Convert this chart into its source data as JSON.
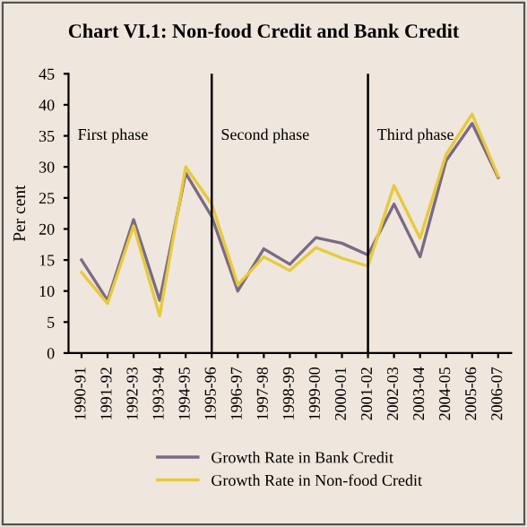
{
  "chart_data": {
    "type": "line",
    "title": "Chart VI.1: Non-food Credit and Bank Credit",
    "ylabel": "Per cent",
    "categories": [
      "1990-91",
      "1991-92",
      "1992-93",
      "1993-94",
      "1994-95",
      "1995-96",
      "1996-97",
      "1997-98",
      "1998-99",
      "1999-00",
      "2000-01",
      "2001-02",
      "2002-03",
      "2003-04",
      "2004-05",
      "2005-06",
      "2006-07"
    ],
    "series": [
      {
        "name": "Growth Rate in Bank Credit",
        "color": "#7b6a85",
        "values": [
          15,
          8.5,
          21.5,
          8.5,
          29,
          22,
          10,
          16.8,
          14.3,
          18.6,
          17.7,
          15.8,
          24,
          15.5,
          31,
          37,
          28.3
        ]
      },
      {
        "name": "Growth Rate in Non-food Credit",
        "color": "#e8c93a",
        "values": [
          13,
          8,
          20.5,
          6,
          30,
          24,
          11,
          15.5,
          13.3,
          17,
          15.3,
          14,
          27,
          18.5,
          32,
          38.5,
          28.5
        ]
      }
    ],
    "ylim": [
      0,
      45
    ],
    "yticks": [
      0,
      5,
      10,
      15,
      20,
      25,
      30,
      35,
      40,
      45
    ],
    "ref_lines": [
      {
        "axis": "x",
        "value": "1995-96",
        "color": "#000000"
      },
      {
        "axis": "x",
        "value": "2001-02",
        "color": "#000000"
      }
    ],
    "annotations": [
      "First phase",
      "Second phase",
      "Third phase"
    ],
    "grid": false,
    "legend": "bottom",
    "marker": "none",
    "line_style": "solid"
  }
}
